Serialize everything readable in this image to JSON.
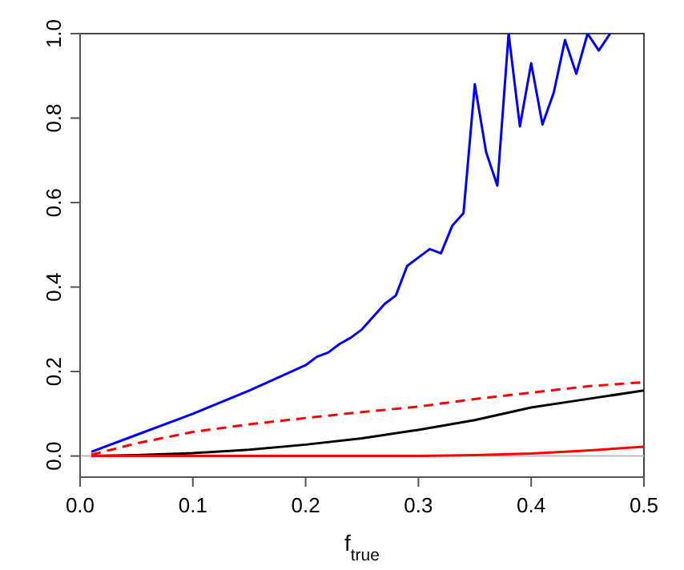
{
  "chart_data": {
    "type": "line",
    "xlabel": "f$_{true}$",
    "xlim": [
      0,
      0.5
    ],
    "xticks": [
      {
        "value": 0,
        "label": "0.0"
      },
      0.1,
      0.2,
      0.3,
      0.4,
      0.5
    ],
    "ylim": [
      -0.05,
      1
    ],
    "yticks": [
      {
        "value": 0,
        "label": "0.0"
      },
      0.2,
      0.4,
      0.6,
      0.8,
      {
        "value": 1,
        "label": "1.0"
      }
    ],
    "marker": "none",
    "ref_lines": [
      {
        "axis": "y",
        "value": 0,
        "color": "#bebebe"
      }
    ],
    "series": [
      {
        "color": "#0000ff",
        "line_style": "solid",
        "x": [
          0.01,
          0.05,
          0.1,
          0.15,
          0.2,
          0.21,
          0.22,
          0.23,
          0.24,
          0.25,
          0.26,
          0.27,
          0.28,
          0.29,
          0.3,
          0.31,
          0.32,
          0.33,
          0.34,
          0.35,
          0.36,
          0.37,
          0.38,
          0.39,
          0.4,
          0.41,
          0.42,
          0.43,
          0.44,
          0.45,
          0.46,
          0.47
        ],
        "values": [
          0.01,
          0.05,
          0.1,
          0.155,
          0.215,
          0.235,
          0.245,
          0.265,
          0.28,
          0.3,
          0.33,
          0.36,
          0.38,
          0.45,
          0.47,
          0.49,
          0.48,
          0.545,
          0.575,
          0.88,
          0.72,
          0.64,
          1.0,
          0.78,
          0.93,
          0.785,
          0.86,
          0.985,
          0.905,
          1.0,
          0.96,
          1.0
        ]
      },
      {
        "color": "#ff0000",
        "line_style": "dashed",
        "x": [
          0.01,
          0.05,
          0.1,
          0.15,
          0.2,
          0.25,
          0.3,
          0.35,
          0.4,
          0.45,
          0.5
        ],
        "values": [
          0.003,
          0.03,
          0.057,
          0.075,
          0.09,
          0.104,
          0.117,
          0.135,
          0.15,
          0.165,
          0.175
        ]
      },
      {
        "color": "#000000",
        "line_style": "solid",
        "x": [
          0.01,
          0.05,
          0.1,
          0.15,
          0.2,
          0.25,
          0.3,
          0.35,
          0.4,
          0.45,
          0.5
        ],
        "values": [
          0,
          0.002,
          0.007,
          0.015,
          0.027,
          0.042,
          0.062,
          0.085,
          0.115,
          0.135,
          0.155
        ]
      },
      {
        "color": "#ff0000",
        "line_style": "solid",
        "x": [
          0.01,
          0.1,
          0.2,
          0.3,
          0.35,
          0.4,
          0.45,
          0.5
        ],
        "values": [
          0,
          0,
          0,
          0,
          0.002,
          0.006,
          0.013,
          0.022
        ]
      }
    ]
  }
}
